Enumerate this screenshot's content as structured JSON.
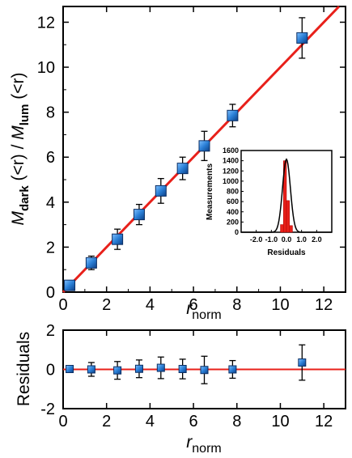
{
  "chart_data": [
    {
      "type": "scatter",
      "panel": "main",
      "xlabel_main": "r",
      "xlabel_sub": "norm",
      "ylabel": {
        "m1": "M",
        "s1": "dark",
        "m2": " (<r) / ",
        "m3": "M",
        "s2": "lum",
        "m4": " (<r)"
      },
      "xlim": [
        0,
        13
      ],
      "ylim": [
        0,
        12.7
      ],
      "xticks": [
        "0",
        "2",
        "4",
        "6",
        "8",
        "10",
        "12"
      ],
      "yticks": [
        "0",
        "2",
        "4",
        "6",
        "8",
        "10",
        "12"
      ],
      "fit_line": {
        "x": [
          0,
          13
        ],
        "y": [
          0.0,
          13.0
        ],
        "color": "#e8201a"
      },
      "points": {
        "x": [
          0.3,
          1.3,
          2.5,
          3.5,
          4.5,
          5.5,
          6.5,
          7.8,
          11.0
        ],
        "y": [
          0.3,
          1.3,
          2.35,
          3.45,
          4.5,
          5.5,
          6.5,
          7.85,
          11.3
        ],
        "yerr": [
          0.15,
          0.3,
          0.45,
          0.45,
          0.55,
          0.5,
          0.65,
          0.5,
          0.9
        ],
        "color": "#1f6fc9"
      }
    },
    {
      "type": "bar",
      "panel": "inset",
      "xlabel": "Residuals",
      "ylabel": "Measurements",
      "xlim": [
        -3.0,
        3.0
      ],
      "ylim": [
        0,
        1600
      ],
      "xticks": [
        "-2.0",
        "-1.0",
        "0.0",
        "1.0",
        "2.0"
      ],
      "yticks": [
        "0",
        "200",
        "400",
        "600",
        "800",
        "1000",
        "1200",
        "1400",
        "1600"
      ],
      "bins": {
        "centers": [
          -0.3,
          -0.1,
          0.1,
          0.3
        ],
        "values": [
          150,
          1400,
          620,
          130
        ],
        "color": "#e8201a"
      },
      "gaussian": {
        "amplitude": 1430,
        "sigma": 0.26,
        "color": "#000000"
      }
    },
    {
      "type": "scatter",
      "panel": "residuals",
      "xlabel_main": "r",
      "xlabel_sub": "norm",
      "ylabel": "Residuals",
      "xlim": [
        0,
        13
      ],
      "ylim": [
        -2,
        2
      ],
      "xticks": [
        "0",
        "2",
        "4",
        "6",
        "8",
        "10",
        "12"
      ],
      "yticks": [
        "-2",
        "0",
        "2"
      ],
      "zero_line": {
        "y": 0,
        "color": "#e8201a"
      },
      "points": {
        "x": [
          0.3,
          1.3,
          2.5,
          3.5,
          4.5,
          5.5,
          6.5,
          7.8,
          11.0
        ],
        "y": [
          0.02,
          0.0,
          -0.05,
          0.03,
          0.08,
          0.02,
          -0.03,
          0.0,
          0.35
        ],
        "yerr": [
          0.15,
          0.35,
          0.45,
          0.45,
          0.55,
          0.5,
          0.7,
          0.45,
          0.9
        ],
        "color": "#1f6fc9"
      }
    }
  ]
}
